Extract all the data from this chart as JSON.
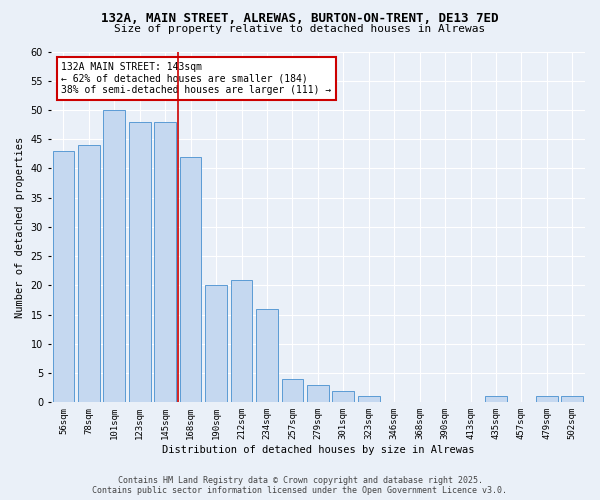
{
  "title": "132A, MAIN STREET, ALREWAS, BURTON-ON-TRENT, DE13 7ED",
  "subtitle": "Size of property relative to detached houses in Alrewas",
  "xlabel": "Distribution of detached houses by size in Alrewas",
  "ylabel": "Number of detached properties",
  "categories": [
    "56sqm",
    "78sqm",
    "101sqm",
    "123sqm",
    "145sqm",
    "168sqm",
    "190sqm",
    "212sqm",
    "234sqm",
    "257sqm",
    "279sqm",
    "301sqm",
    "323sqm",
    "346sqm",
    "368sqm",
    "390sqm",
    "413sqm",
    "435sqm",
    "457sqm",
    "479sqm",
    "502sqm"
  ],
  "values": [
    43,
    44,
    50,
    48,
    48,
    42,
    20,
    21,
    16,
    4,
    3,
    2,
    1,
    0,
    0,
    0,
    0,
    1,
    0,
    1,
    1
  ],
  "bar_color": "#c5d8f0",
  "bar_edge_color": "#5b9bd5",
  "bg_color": "#eaf0f8",
  "grid_color": "#ffffff",
  "vline_x": 4.5,
  "vline_color": "#cc0000",
  "annotation_text": "132A MAIN STREET: 143sqm\n← 62% of detached houses are smaller (184)\n38% of semi-detached houses are larger (111) →",
  "annotation_box_color": "#cc0000",
  "ylim": [
    0,
    60
  ],
  "yticks": [
    0,
    5,
    10,
    15,
    20,
    25,
    30,
    35,
    40,
    45,
    50,
    55,
    60
  ],
  "footer_line1": "Contains HM Land Registry data © Crown copyright and database right 2025.",
  "footer_line2": "Contains public sector information licensed under the Open Government Licence v3.0."
}
